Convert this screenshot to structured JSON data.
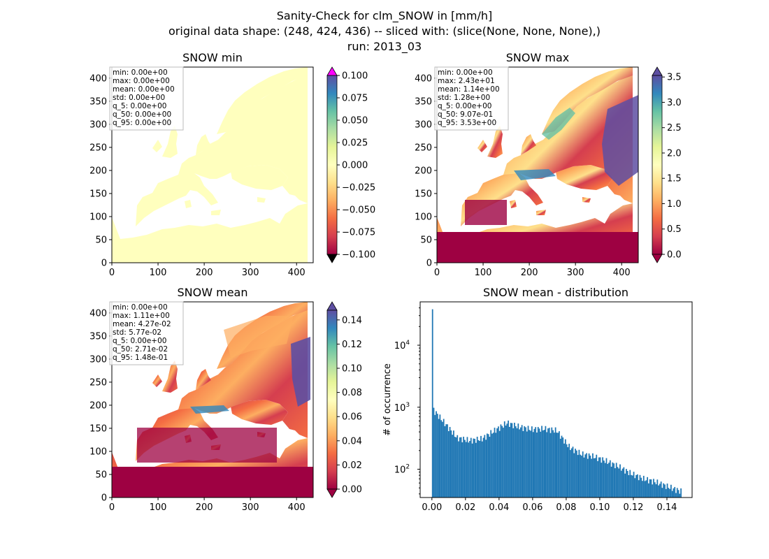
{
  "figure": {
    "title_lines": [
      "Sanity-Check for clm_SNOW in [mm/h]",
      "original data shape: (248, 424, 436) -- sliced with: (slice(None, None, None),)",
      "run: 2013_03"
    ]
  },
  "colors": {
    "snow_min_fill": "#ffffbe",
    "ocean": "#ffffff",
    "low": "#9e0142",
    "high": "#5e4fa2",
    "hist_bar": "#1f77b4",
    "over_arrow": "#ff00ff",
    "under_arrow": "#000000",
    "colormap": [
      "#9e0142",
      "#d53e4f",
      "#f46d43",
      "#fdae61",
      "#fee08b",
      "#ffffbf",
      "#e6f598",
      "#abdda4",
      "#66c2a5",
      "#3288bd",
      "#5e4fa2"
    ]
  },
  "chart_data": [
    {
      "type": "heatmap",
      "title": "SNOW min",
      "xlim": [
        0,
        436
      ],
      "ylim": [
        0,
        424
      ],
      "xticks": [
        "0",
        "100",
        "200",
        "300",
        "400"
      ],
      "yticks": [
        "0",
        "50",
        "100",
        "150",
        "200",
        "250",
        "300",
        "350",
        "400"
      ],
      "colorbar": {
        "range": [
          -0.1,
          0.1
        ],
        "ticks": [
          "0.100",
          "0.075",
          "0.050",
          "0.025",
          "0.000",
          "−0.025",
          "−0.050",
          "−0.075",
          "−0.100"
        ],
        "extend": "both"
      },
      "stats": [
        "min: 0.00e+00",
        "max: 0.00e+00",
        "mean: 0.00e+00",
        "std: 0.00e+00",
        "q_5: 0.00e+00",
        "q_50: 0.00e+00",
        "q_95: 0.00e+00"
      ]
    },
    {
      "type": "heatmap",
      "title": "SNOW max",
      "xlim": [
        0,
        436
      ],
      "ylim": [
        0,
        424
      ],
      "xticks": [
        "0",
        "100",
        "200",
        "300",
        "400"
      ],
      "yticks": [
        "0",
        "50",
        "100",
        "150",
        "200",
        "250",
        "300",
        "350",
        "400"
      ],
      "colorbar": {
        "range": [
          0,
          3.53
        ],
        "ticks": [
          "3.5",
          "3.0",
          "2.5",
          "2.0",
          "1.5",
          "1.0",
          "0.5",
          "0.0"
        ],
        "extend": "both"
      },
      "stats": [
        "min: 0.00e+00",
        "max: 2.43e+01",
        "mean: 1.14e+00",
        "std: 1.28e+00",
        "q_5: 0.00e+00",
        "q_50: 9.07e-01",
        "q_95: 3.53e+00"
      ]
    },
    {
      "type": "heatmap",
      "title": "SNOW mean",
      "xlim": [
        0,
        436
      ],
      "ylim": [
        0,
        424
      ],
      "xticks": [
        "0",
        "100",
        "200",
        "300",
        "400"
      ],
      "yticks": [
        "0",
        "50",
        "100",
        "150",
        "200",
        "250",
        "300",
        "350",
        "400"
      ],
      "colorbar": {
        "range": [
          0,
          0.148
        ],
        "ticks": [
          "0.14",
          "0.12",
          "0.10",
          "0.08",
          "0.06",
          "0.04",
          "0.02",
          "0.00"
        ],
        "extend": "both"
      },
      "stats": [
        "min: 0.00e+00",
        "max: 1.11e+00",
        "mean: 4.27e-02",
        "std: 5.77e-02",
        "q_5: 0.00e+00",
        "q_50: 2.71e-02",
        "q_95: 1.48e-01"
      ]
    },
    {
      "type": "bar",
      "title": "SNOW mean - distribution",
      "xlabel": "",
      "ylabel": "# of occurrence",
      "yscale": "log",
      "xlim": [
        -0.007,
        0.155
      ],
      "ylim": [
        35,
        50000
      ],
      "xticks": [
        "0.00",
        "0.02",
        "0.04",
        "0.06",
        "0.08",
        "0.10",
        "0.12",
        "0.14"
      ],
      "yticks": [
        "10^2",
        "10^3",
        "10^4"
      ],
      "bin_width": 0.00074,
      "x": [
        0.0,
        0.0074,
        0.0148,
        0.0222,
        0.0296,
        0.037,
        0.0444,
        0.0518,
        0.0592,
        0.0666,
        0.074,
        0.0814,
        0.0888,
        0.0962,
        0.1036,
        0.111,
        0.1184,
        0.1258,
        0.1332,
        0.1406,
        0.148
      ],
      "y": [
        38000,
        550,
        320,
        290,
        310,
        420,
        560,
        480,
        440,
        450,
        420,
        230,
        175,
        160,
        135,
        110,
        85,
        70,
        62,
        52,
        44
      ]
    }
  ]
}
